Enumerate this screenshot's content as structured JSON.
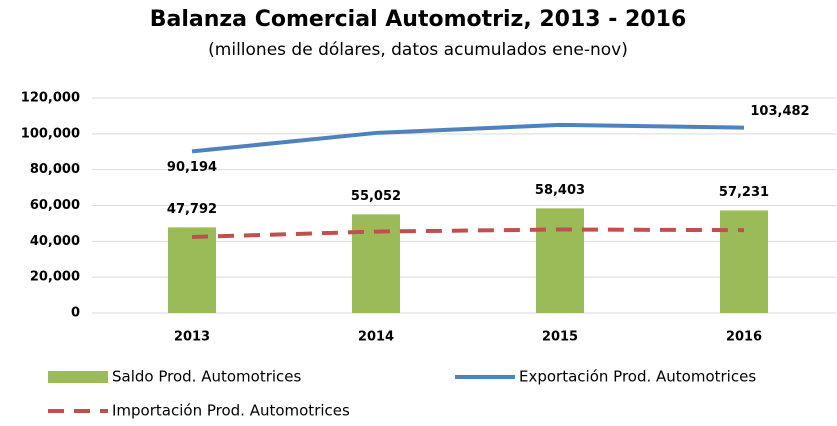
{
  "chart_data": {
    "type": "bar_line",
    "title": "Balanza Comercial Automotriz, 2013 - 2016",
    "subtitle": "(millones de dólares, datos acumulados ene-nov)",
    "categories": [
      "2013",
      "2014",
      "2015",
      "2016"
    ],
    "series": [
      {
        "name": "Saldo Prod. Automotrices",
        "type": "bar",
        "color": "#9bbb59",
        "values": [
          47792,
          55052,
          58403,
          57231
        ],
        "value_labels": [
          "47,792",
          "55,052",
          "58,403",
          "57,231"
        ]
      },
      {
        "name": "Exportación Prod. Automotrices",
        "type": "line",
        "color": "#4f81bd",
        "dash": false,
        "values": [
          90194,
          100500,
          105000,
          103482
        ],
        "value_labels": [
          "90,194",
          null,
          null,
          "103,482"
        ]
      },
      {
        "name": "Importación Prod. Automotrices",
        "type": "line",
        "color": "#c0504d",
        "dash": true,
        "values": [
          42402,
          45448,
          46597,
          46251
        ]
      }
    ],
    "ylim": [
      0,
      120000
    ],
    "yticks": [
      {
        "value": 0,
        "label": "0"
      },
      {
        "value": 20000,
        "label": "20,000"
      },
      {
        "value": 40000,
        "label": "40,000"
      },
      {
        "value": 60000,
        "label": "60,000"
      },
      {
        "value": 80000,
        "label": "80,000"
      },
      {
        "value": 100000,
        "label": "100,000"
      },
      {
        "value": 120000,
        "label": "120,000"
      }
    ],
    "grid": true
  }
}
